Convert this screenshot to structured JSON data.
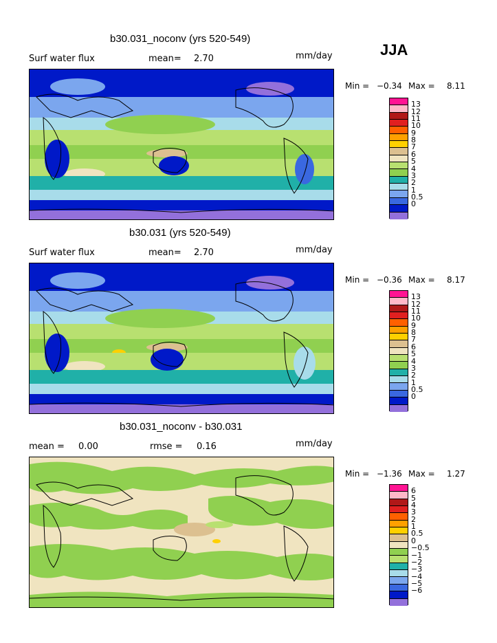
{
  "season": "JJA",
  "legend_colors": [
    "#9370db",
    "#0019c8",
    "#3a68e0",
    "#7ba6ee",
    "#a8dcea",
    "#20b0a8",
    "#90d050",
    "#b8e070",
    "#f0e4c0",
    "#dcc090",
    "#ffd000",
    "#ffa000",
    "#ff6000",
    "#e02020",
    "#b01818",
    "#ffb8c8",
    "#ff1493"
  ],
  "panels": [
    {
      "title": "b30.031_noconv (yrs 520-549)",
      "left_label": "Surf water flux",
      "mean_label": "mean=",
      "mean_value": "2.70",
      "units": "mm/day",
      "min_label": "Min =",
      "min_value": "−0.34",
      "max_label": "Max =",
      "max_value": "8.11",
      "levels": [
        "13",
        "12",
        "11",
        "10",
        "9",
        "8",
        "7",
        "6",
        "5",
        "4",
        "3",
        "2",
        "1",
        "0.5",
        "0"
      ],
      "colors": [
        "#ff1493",
        "#ffb8c8",
        "#b01818",
        "#e02020",
        "#ff6000",
        "#ffa000",
        "#ffd000",
        "#dcc090",
        "#f0e4c0",
        "#b8e070",
        "#90d050",
        "#20b0a8",
        "#a8dcea",
        "#7ba6ee",
        "#3a68e0",
        "#0019c8",
        "#9370db"
      ]
    },
    {
      "title": "b30.031 (yrs 520-549)",
      "left_label": "Surf water flux",
      "mean_label": "mean=",
      "mean_value": "2.70",
      "units": "mm/day",
      "min_label": "Min =",
      "min_value": "−0.36",
      "max_label": "Max =",
      "max_value": "8.17",
      "levels": [
        "13",
        "12",
        "11",
        "10",
        "9",
        "8",
        "7",
        "6",
        "5",
        "4",
        "3",
        "2",
        "1",
        "0.5",
        "0"
      ],
      "colors": [
        "#ff1493",
        "#ffb8c8",
        "#b01818",
        "#e02020",
        "#ff6000",
        "#ffa000",
        "#ffd000",
        "#dcc090",
        "#f0e4c0",
        "#b8e070",
        "#90d050",
        "#20b0a8",
        "#a8dcea",
        "#7ba6ee",
        "#3a68e0",
        "#0019c8",
        "#9370db"
      ]
    },
    {
      "title": "b30.031_noconv - b30.031",
      "mean_label": "mean =",
      "mean_value": "0.00",
      "rmse_label": "rmse =",
      "rmse_value": "0.16",
      "units": "mm/day",
      "min_label": "Min =",
      "min_value": "−1.36",
      "max_label": "Max =",
      "max_value": "1.27",
      "levels": [
        "6",
        "5",
        "4",
        "3",
        "2",
        "1",
        "0.5",
        "0",
        "−0.5",
        "−1",
        "−2",
        "−3",
        "−4",
        "−5",
        "−6"
      ],
      "colors": [
        "#ff1493",
        "#ffb8c8",
        "#b01818",
        "#e02020",
        "#ff6000",
        "#ffa000",
        "#ffd000",
        "#dcc090",
        "#f0e4c0",
        "#90d050",
        "#b8e070",
        "#20b0a8",
        "#a8dcea",
        "#7ba6ee",
        "#3a68e0",
        "#0019c8",
        "#9370db"
      ]
    }
  ]
}
